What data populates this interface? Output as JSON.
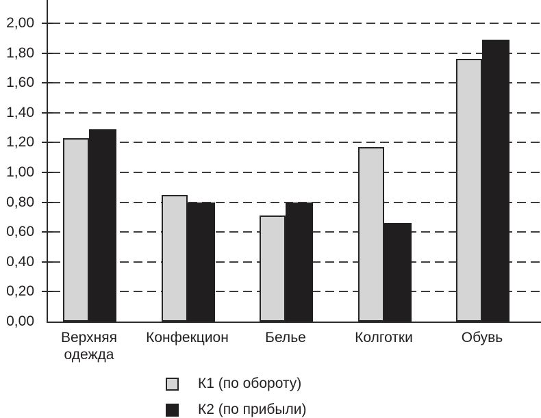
{
  "chart_data": {
    "type": "bar",
    "categories": [
      "Верхняя одежда",
      "Конфекцион",
      "Белье",
      "Колготки",
      "Обувь"
    ],
    "category_display": [
      "Верхняя\nодежда",
      "Конфекцион",
      "Белье",
      "Колготки",
      "Обувь"
    ],
    "series": [
      {
        "name": "К1 (по обороту)",
        "values": [
          1.23,
          0.85,
          0.71,
          1.17,
          1.76
        ],
        "color": "#d6d5d5"
      },
      {
        "name": "К2 (по прибыли)",
        "values": [
          1.29,
          0.8,
          0.8,
          0.66,
          1.89
        ],
        "color": "#211e1f"
      }
    ],
    "title": "",
    "xlabel": "",
    "ylabel": "",
    "ylim": [
      0,
      2.0
    ],
    "ytick_step": 0.2,
    "ytick_labels": [
      "0,00",
      "0,20",
      "0,40",
      "0,60",
      "0,80",
      "1,00",
      "1,20",
      "1,40",
      "1,60",
      "1,80",
      "2,00"
    ],
    "grid": "horizontal-dashed",
    "legend_position": "bottom-center"
  },
  "colors": {
    "background": "#ffffff",
    "axis": "#2d2a2b",
    "gridline": "#3f3c3d",
    "text": "#231f20",
    "bar_k1_fill": "#d6d5d5",
    "bar_k1_border": "#272425",
    "bar_k2_fill": "#211e1f"
  }
}
